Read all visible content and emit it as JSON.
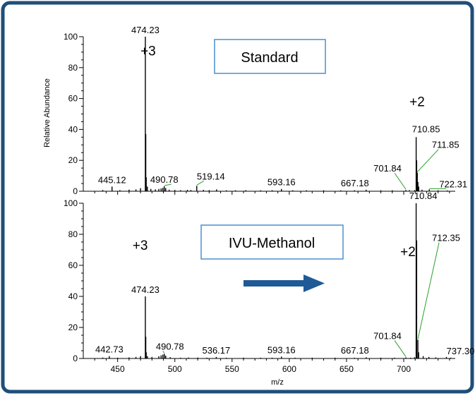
{
  "colors": {
    "frame": "#1f4e79",
    "label_box": "#4a8fd0",
    "arrow": "#1f5a96",
    "leader": "#2aa02a",
    "peaks": "#000000"
  },
  "chart_data": [
    {
      "type": "line",
      "name": "top-spectrum",
      "xlim": [
        420,
        745
      ],
      "ylim": [
        0,
        100
      ],
      "ylabel": "Relative Abundance",
      "xlabel": "",
      "y_ticks": [
        "0",
        "20",
        "40",
        "60",
        "80",
        "100"
      ],
      "box_label": "Standard",
      "charge_labels": [
        {
          "text": "+3",
          "x": 470,
          "y": 88
        },
        {
          "text": "+2",
          "x": 705,
          "y": 55
        }
      ],
      "peaks": [
        [
          437,
          0.8
        ],
        [
          445.12,
          3.0
        ],
        [
          452,
          0.7
        ],
        [
          460,
          1.0
        ],
        [
          466,
          1.2
        ],
        [
          470,
          2.0
        ],
        [
          474.23,
          100
        ],
        [
          474.6,
          37
        ],
        [
          475,
          9
        ],
        [
          476,
          3
        ],
        [
          479,
          1.5
        ],
        [
          483,
          1.2
        ],
        [
          486,
          1.5
        ],
        [
          488,
          1.8
        ],
        [
          489.5,
          2.2
        ],
        [
          490.78,
          3.2
        ],
        [
          492,
          2.0
        ],
        [
          495,
          1.0
        ],
        [
          500,
          0.8
        ],
        [
          505,
          0.7
        ],
        [
          511,
          0.9
        ],
        [
          514,
          0.8
        ],
        [
          519.14,
          3.5
        ],
        [
          525,
          0.9
        ],
        [
          530,
          0.7
        ],
        [
          536.5,
          1.2
        ],
        [
          545,
          0.6
        ],
        [
          553,
          0.6
        ],
        [
          562,
          0.7
        ],
        [
          575,
          0.6
        ],
        [
          585,
          0.7
        ],
        [
          593.16,
          1.5
        ],
        [
          603,
          0.6
        ],
        [
          615,
          0.6
        ],
        [
          630,
          0.6
        ],
        [
          645,
          0.6
        ],
        [
          657,
          0.6
        ],
        [
          667.18,
          1.0
        ],
        [
          680,
          0.6
        ],
        [
          690,
          0.6
        ],
        [
          701.84,
          0.8
        ],
        [
          705,
          0.7
        ],
        [
          709.5,
          0.7
        ],
        [
          710.85,
          35
        ],
        [
          711.3,
          20
        ],
        [
          711.85,
          12
        ],
        [
          712.4,
          6
        ],
        [
          713.1,
          3
        ],
        [
          716,
          1.0
        ],
        [
          722.31,
          1.2
        ],
        [
          730,
          0.6
        ],
        [
          738,
          0.5
        ]
      ],
      "peak_labels": [
        {
          "text": "474.23",
          "x": 474.23,
          "y": 100
        },
        {
          "text": "445.12",
          "x": 445.12,
          "y": 3.0
        },
        {
          "text": "490.78",
          "x": 490.78,
          "y": 3.2
        },
        {
          "text": "519.14",
          "x": 519.14,
          "y": 3.5
        },
        {
          "text": "593.16",
          "x": 593.16,
          "y": 1.5
        },
        {
          "text": "667.18",
          "x": 667.18,
          "y": 1.0
        },
        {
          "text": "710.85",
          "x": 710.85,
          "y": 35
        },
        {
          "text": "711.85",
          "x": 711.85,
          "y": 12
        },
        {
          "text": "701.84",
          "x": 701.84,
          "y": 0.8
        },
        {
          "text": "722.31",
          "x": 722.31,
          "y": 1.2
        }
      ]
    },
    {
      "type": "line",
      "name": "bottom-spectrum",
      "xlim": [
        420,
        745
      ],
      "ylim": [
        0,
        100
      ],
      "xlabel": "m/z",
      "ylabel": "",
      "x_ticks": [
        "450",
        "500",
        "550",
        "600",
        "650",
        "700"
      ],
      "y_ticks": [
        "0",
        "20",
        "40",
        "60",
        "80",
        "100"
      ],
      "box_label": "IVU-Methanol",
      "charge_labels": [
        {
          "text": "+3",
          "x": 463,
          "y": 70
        },
        {
          "text": "+2",
          "x": 697,
          "y": 66
        }
      ],
      "peaks": [
        [
          437,
          0.6
        ],
        [
          442.73,
          1.5
        ],
        [
          450,
          0.5
        ],
        [
          460,
          0.7
        ],
        [
          466,
          1.0
        ],
        [
          470,
          1.5
        ],
        [
          474.23,
          40
        ],
        [
          474.6,
          14
        ],
        [
          475,
          4
        ],
        [
          476,
          1.5
        ],
        [
          480,
          1.0
        ],
        [
          486,
          1.4
        ],
        [
          488,
          2.0
        ],
        [
          489.5,
          2.5
        ],
        [
          490.78,
          3.0
        ],
        [
          492,
          1.8
        ],
        [
          496,
          0.8
        ],
        [
          505,
          0.5
        ],
        [
          512,
          0.6
        ],
        [
          520,
          0.6
        ],
        [
          528,
          0.5
        ],
        [
          536.17,
          1.0
        ],
        [
          545,
          0.5
        ],
        [
          560,
          0.5
        ],
        [
          575,
          0.5
        ],
        [
          585,
          0.5
        ],
        [
          593.16,
          1.2
        ],
        [
          605,
          0.5
        ],
        [
          620,
          0.5
        ],
        [
          640,
          0.5
        ],
        [
          657,
          0.5
        ],
        [
          667.18,
          0.8
        ],
        [
          680,
          0.5
        ],
        [
          692,
          0.5
        ],
        [
          701.84,
          0.7
        ],
        [
          706,
          0.5
        ],
        [
          709.5,
          0.8
        ],
        [
          710.84,
          100
        ],
        [
          711.3,
          76
        ],
        [
          712.35,
          12
        ],
        [
          713,
          4
        ],
        [
          717,
          1.5
        ],
        [
          722,
          1.0
        ],
        [
          728,
          0.7
        ],
        [
          737.3,
          1.0
        ],
        [
          741,
          0.5
        ]
      ],
      "peak_labels": [
        {
          "text": "710.84",
          "x": 710.84,
          "y": 100
        },
        {
          "text": "712.35",
          "x": 712.35,
          "y": 12
        },
        {
          "text": "474.23",
          "x": 474.23,
          "y": 40
        },
        {
          "text": "442.73",
          "x": 442.73,
          "y": 1.5
        },
        {
          "text": "490.78",
          "x": 490.78,
          "y": 3.0
        },
        {
          "text": "536.17",
          "x": 536.17,
          "y": 1.0
        },
        {
          "text": "593.16",
          "x": 593.16,
          "y": 1.2
        },
        {
          "text": "667.18",
          "x": 667.18,
          "y": 0.8
        },
        {
          "text": "701.84",
          "x": 701.84,
          "y": 0.7
        },
        {
          "text": "737.30",
          "x": 737.3,
          "y": 1.0
        }
      ]
    }
  ]
}
